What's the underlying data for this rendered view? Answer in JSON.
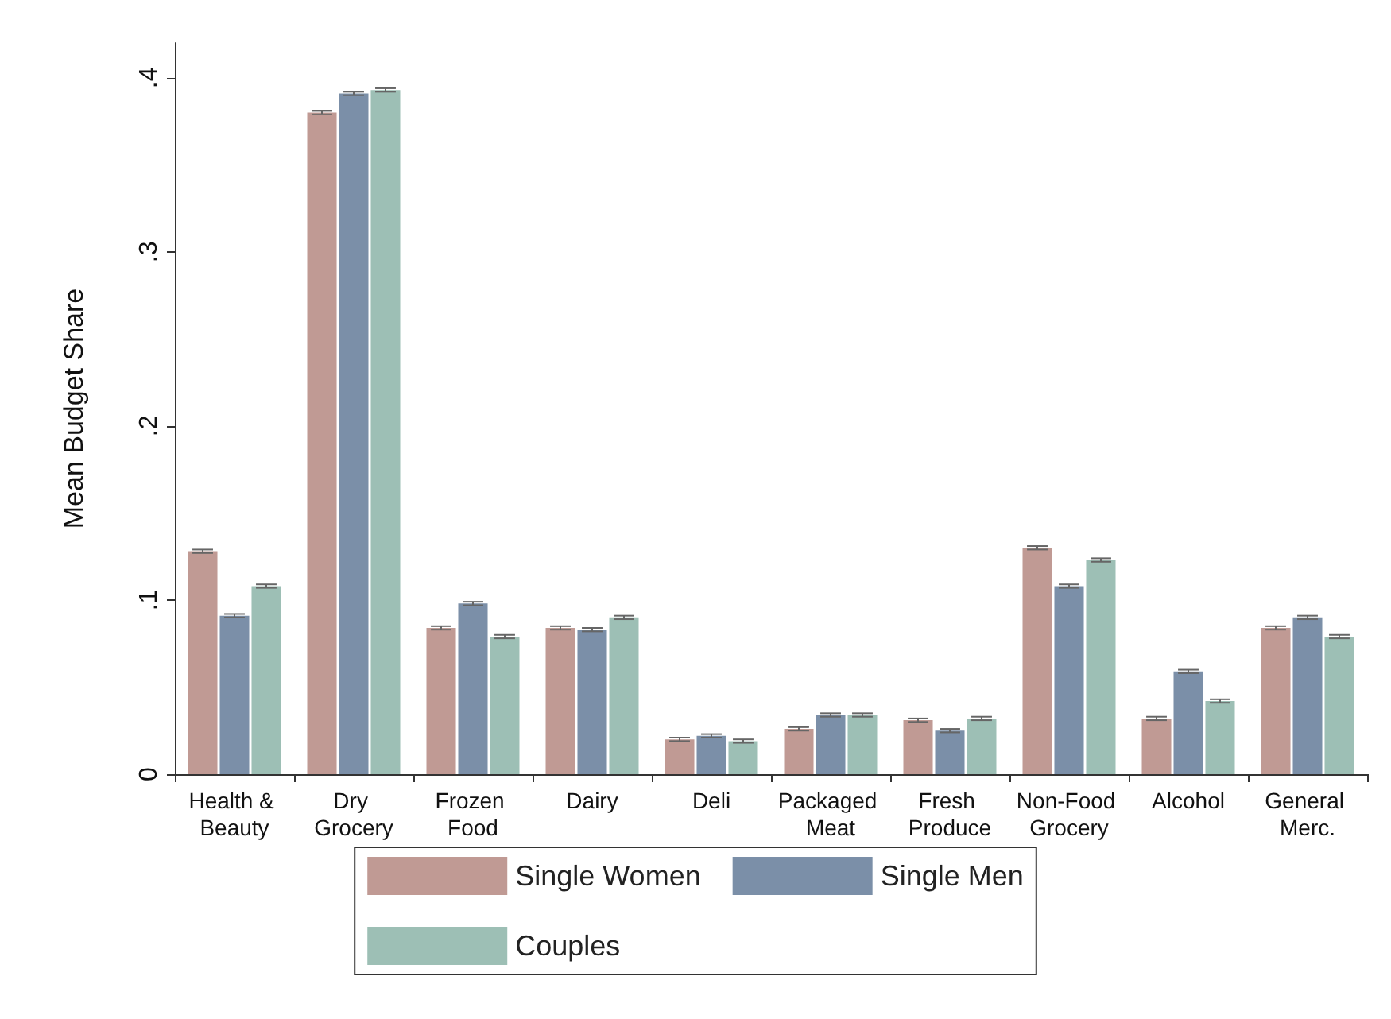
{
  "chart_data": {
    "type": "bar",
    "ylabel": "Mean Budget Share",
    "categories": [
      "Health & Beauty",
      "Dry Grocery",
      "Frozen Food",
      "Dairy",
      "Deli",
      "Packaged Meat",
      "Fresh Produce",
      "Non-Food Grocery",
      "Alcohol",
      "General Merc."
    ],
    "series": [
      {
        "name": "Single Women",
        "color": "#c09a94",
        "values": [
          0.128,
          0.38,
          0.084,
          0.084,
          0.02,
          0.026,
          0.031,
          0.13,
          0.032,
          0.084
        ],
        "errors": [
          0.001,
          0.001,
          0.001,
          0.001,
          0.001,
          0.001,
          0.001,
          0.001,
          0.001,
          0.001
        ]
      },
      {
        "name": "Single Men",
        "color": "#7b8fa8",
        "values": [
          0.091,
          0.391,
          0.098,
          0.083,
          0.022,
          0.034,
          0.025,
          0.108,
          0.059,
          0.09
        ],
        "errors": [
          0.001,
          0.001,
          0.001,
          0.001,
          0.001,
          0.001,
          0.001,
          0.001,
          0.001,
          0.001
        ]
      },
      {
        "name": "Couples",
        "color": "#9dbfb5",
        "values": [
          0.108,
          0.393,
          0.079,
          0.09,
          0.019,
          0.034,
          0.032,
          0.123,
          0.042,
          0.079
        ],
        "errors": [
          0.001,
          0.001,
          0.001,
          0.001,
          0.001,
          0.001,
          0.001,
          0.001,
          0.001,
          0.001
        ]
      }
    ],
    "ylim": [
      0,
      0.42
    ],
    "yticks": [
      0,
      {
        "value": 0.1,
        "label": ".1"
      },
      {
        "value": 0.2,
        "label": ".2"
      },
      {
        "value": 0.3,
        "label": ".3"
      },
      {
        "value": 0.4,
        "label": ".4"
      }
    ],
    "grid": false,
    "legend": "bottom"
  }
}
